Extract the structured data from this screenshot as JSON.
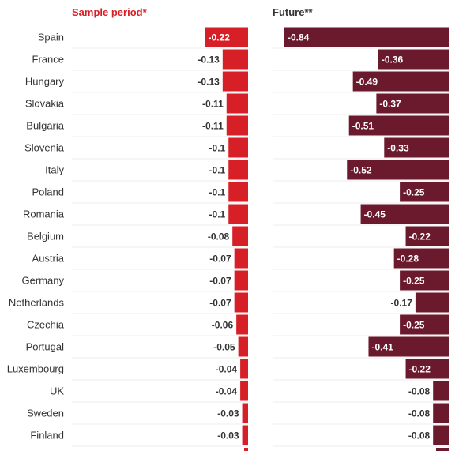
{
  "chart_data": {
    "type": "bar",
    "orientation": "horizontal",
    "categories": [
      "Spain",
      "France",
      "Hungary",
      "Slovakia",
      "Bulgaria",
      "Slovenia",
      "Italy",
      "Poland",
      "Romania",
      "Belgium",
      "Austria",
      "Germany",
      "Netherlands",
      "Czechia",
      "Portugal",
      "Luxembourg",
      "UK",
      "Sweden",
      "Finland"
    ],
    "series": [
      {
        "name": "Sample period*",
        "color": "#d71f27",
        "values": [
          -0.22,
          -0.13,
          -0.13,
          -0.11,
          -0.11,
          -0.1,
          -0.1,
          -0.1,
          -0.1,
          -0.08,
          -0.07,
          -0.07,
          -0.07,
          -0.06,
          -0.05,
          -0.04,
          -0.04,
          -0.03,
          -0.03
        ],
        "labels": [
          "-0.22",
          "-0.13",
          "-0.13",
          "-0.11",
          "-0.11",
          "-0.1",
          "-0.1",
          "-0.1",
          "-0.1",
          "-0.08",
          "-0.07",
          "-0.07",
          "-0.07",
          "-0.06",
          "-0.05",
          "-0.04",
          "-0.04",
          "-0.03",
          "-0.03"
        ]
      },
      {
        "name": "Future**",
        "color": "#6b1a2e",
        "values": [
          -0.84,
          -0.36,
          -0.49,
          -0.37,
          -0.51,
          -0.33,
          -0.52,
          -0.25,
          -0.45,
          -0.22,
          -0.28,
          -0.25,
          -0.17,
          -0.25,
          -0.41,
          -0.22,
          -0.08,
          -0.08,
          -0.08
        ],
        "labels": [
          "-0.84",
          "-0.36",
          "-0.49",
          "-0.37",
          "-0.51",
          "-0.33",
          "-0.52",
          "-0.25",
          "-0.45",
          "-0.22",
          "-0.28",
          "-0.25",
          "-0.17",
          "-0.25",
          "-0.41",
          "-0.22",
          "-0.08",
          "-0.08",
          "-0.08"
        ]
      }
    ],
    "title_color": "#d71f27",
    "label_color": "#333333",
    "grid": true,
    "xlim": [
      -0.84,
      0
    ]
  }
}
